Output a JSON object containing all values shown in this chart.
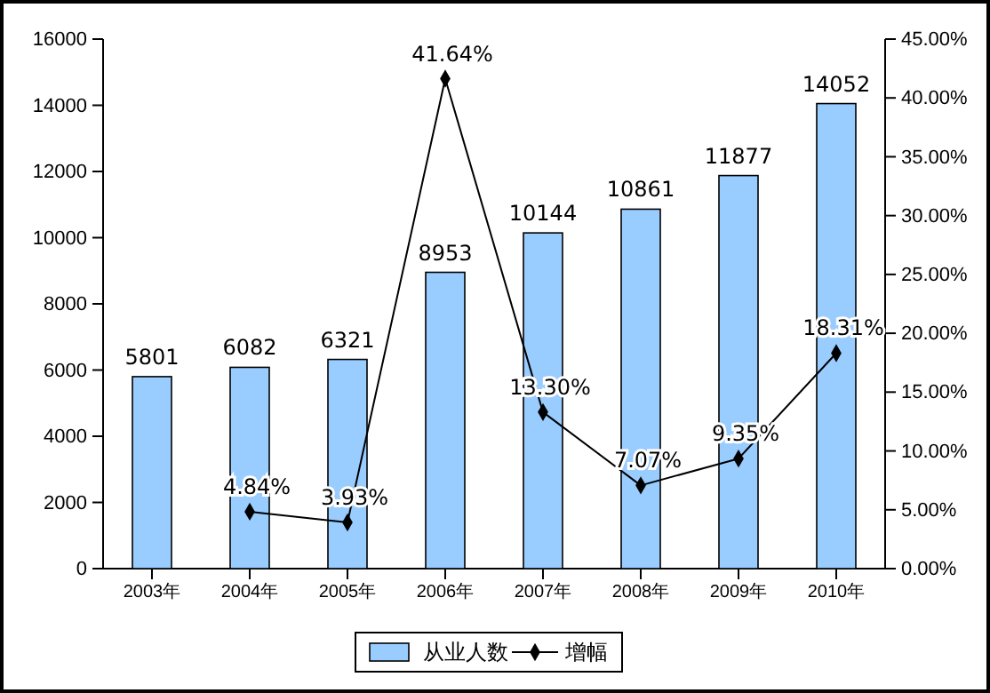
{
  "chart_data": {
    "type": "bar",
    "categories": [
      "2003年",
      "2004年",
      "2005年",
      "2006年",
      "2007年",
      "2008年",
      "2009年",
      "2010年"
    ],
    "series": [
      {
        "name": "从业人数",
        "color": "#99ccff",
        "values": [
          5801,
          6082,
          6321,
          8953,
          10144,
          10861,
          11877,
          14052
        ],
        "value_labels": [
          "5801",
          "6082",
          "6321",
          "8953",
          "10144",
          "10861",
          "11877",
          "14052"
        ]
      },
      {
        "name": "增幅",
        "type": "line",
        "axis": "y2",
        "color": "#000000",
        "marker": "diamond",
        "values": [
          null,
          4.84,
          3.93,
          41.64,
          13.3,
          7.07,
          9.35,
          18.31
        ],
        "value_labels": [
          null,
          "4.84%",
          "3.93%",
          "41.64%",
          "13.30%",
          "7.07%",
          "9.35%",
          "18.31%"
        ]
      }
    ],
    "ylim": [
      0,
      16000
    ],
    "yticks": [
      0,
      2000,
      4000,
      6000,
      8000,
      10000,
      12000,
      14000,
      16000
    ],
    "y2lim": [
      0,
      45
    ],
    "y2ticks": [
      {
        "value": 0,
        "label": "0.00%"
      },
      {
        "value": 5,
        "label": "5.00%"
      },
      {
        "value": 10,
        "label": "10.00%"
      },
      {
        "value": 15,
        "label": "15.00%"
      },
      {
        "value": 20,
        "label": "20.00%"
      },
      {
        "value": 25,
        "label": "25.00%"
      },
      {
        "value": 30,
        "label": "30.00%"
      },
      {
        "value": 35,
        "label": "35.00%"
      },
      {
        "value": 40,
        "label": "40.00%"
      },
      {
        "value": 45,
        "label": "45.00%"
      }
    ],
    "legend": "bottom",
    "grid": false
  }
}
